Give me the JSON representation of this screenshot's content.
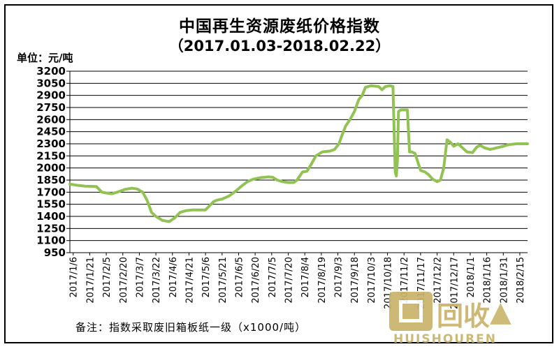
{
  "chart_data": {
    "type": "line",
    "title": "中国再生资源废纸价格指数",
    "subtitle": "（2017.01.03-2018.02.22）",
    "ylabel": "单位：元/吨",
    "xlabel": "",
    "ylim": [
      950,
      3200
    ],
    "y_ticks": [
      950,
      1100,
      1250,
      1400,
      1550,
      1700,
      1850,
      2000,
      2150,
      2300,
      2450,
      2600,
      2750,
      2900,
      3050,
      3200
    ],
    "x_tick_labels": [
      "2017/1/6",
      "2017/1/21",
      "2017/2/5",
      "2017/2/20",
      "2017/3/7",
      "2017/3/22",
      "2017/4/6",
      "2017/4/21",
      "2017/5/6",
      "2017/5/21",
      "2017/6/5",
      "2017/6/20",
      "2017/7/5",
      "2017/7/20",
      "2017/8/4",
      "2017/8/19",
      "2017/9/3",
      "2017/9/18",
      "2017/10/3",
      "2017/10/18",
      "2017/11/2",
      "2017/11/17",
      "2017/12/2",
      "2017/12/17",
      "2018/1/1",
      "2018/1/16",
      "2018/1/31",
      "2018/2/15"
    ],
    "grid": true,
    "legend": "none",
    "line_color": "#92c352",
    "series": [
      {
        "x": [
          "2017/1/3",
          "2017/1/10",
          "2017/1/17",
          "2017/1/27",
          "2017/2/1",
          "2017/2/5",
          "2017/2/10",
          "2017/2/15",
          "2017/2/22",
          "2017/2/28",
          "2017/3/5",
          "2017/3/10",
          "2017/3/14",
          "2017/3/18",
          "2017/3/22",
          "2017/3/28",
          "2017/4/3",
          "2017/4/8",
          "2017/4/13",
          "2017/4/18",
          "2017/4/24",
          "2017/4/30",
          "2017/5/6",
          "2017/5/13",
          "2017/5/16",
          "2017/5/21",
          "2017/5/27",
          "2017/6/3",
          "2017/6/8",
          "2017/6/13",
          "2017/6/18",
          "2017/6/25",
          "2017/7/2",
          "2017/7/6",
          "2017/7/10",
          "2017/7/15",
          "2017/7/20",
          "2017/7/25",
          "2017/7/28",
          "2017/8/2",
          "2017/8/6",
          "2017/8/10",
          "2017/8/14",
          "2017/8/20",
          "2017/8/27",
          "2017/8/31",
          "2017/9/4",
          "2017/9/6",
          "2017/9/10",
          "2017/9/14",
          "2017/9/18",
          "2017/9/22",
          "2017/9/25",
          "2017/9/28",
          "2017/10/3",
          "2017/10/10",
          "2017/10/13",
          "2017/10/16",
          "2017/10/20",
          "2017/10/23",
          "2017/10/25",
          "2017/10/26",
          "2017/10/27",
          "2017/10/28",
          "2017/10/30",
          "2017/11/1",
          "2017/11/5",
          "2017/11/7",
          "2017/11/9",
          "2017/11/12",
          "2017/11/17",
          "2017/11/21",
          "2017/11/24",
          "2017/11/28",
          "2017/12/2",
          "2017/12/5",
          "2017/12/8",
          "2017/12/11",
          "2017/12/14",
          "2017/12/17",
          "2017/12/21",
          "2017/12/25",
          "2017/12/29",
          "2018/1/3",
          "2018/1/7",
          "2018/1/10",
          "2018/1/14",
          "2018/1/19",
          "2018/1/25",
          "2018/1/31",
          "2018/2/5",
          "2018/2/12",
          "2018/2/22"
        ],
        "values": [
          1800,
          1785,
          1775,
          1770,
          1700,
          1690,
          1680,
          1700,
          1735,
          1750,
          1740,
          1700,
          1600,
          1450,
          1400,
          1350,
          1335,
          1380,
          1450,
          1470,
          1480,
          1480,
          1480,
          1580,
          1600,
          1615,
          1650,
          1720,
          1780,
          1830,
          1860,
          1880,
          1890,
          1885,
          1850,
          1830,
          1820,
          1820,
          1850,
          1950,
          1960,
          2050,
          2150,
          2200,
          2210,
          2230,
          2300,
          2380,
          2520,
          2600,
          2700,
          2850,
          2900,
          3000,
          3020,
          3010,
          2970,
          3010,
          3020,
          3010,
          1950,
          1900,
          2100,
          2700,
          2720,
          2720,
          2720,
          2200,
          2200,
          2180,
          1970,
          1950,
          1920,
          1860,
          1830,
          1850,
          2000,
          2350,
          2320,
          2270,
          2300,
          2250,
          2200,
          2190,
          2260,
          2280,
          2250,
          2230,
          2250,
          2270,
          2290,
          2300,
          2300
        ]
      }
    ]
  },
  "footnote": "备注：指数采取废旧箱板纸一级（x1000/吨）",
  "watermark": {
    "cn": "回收",
    "en": "HUISHOUREN"
  }
}
